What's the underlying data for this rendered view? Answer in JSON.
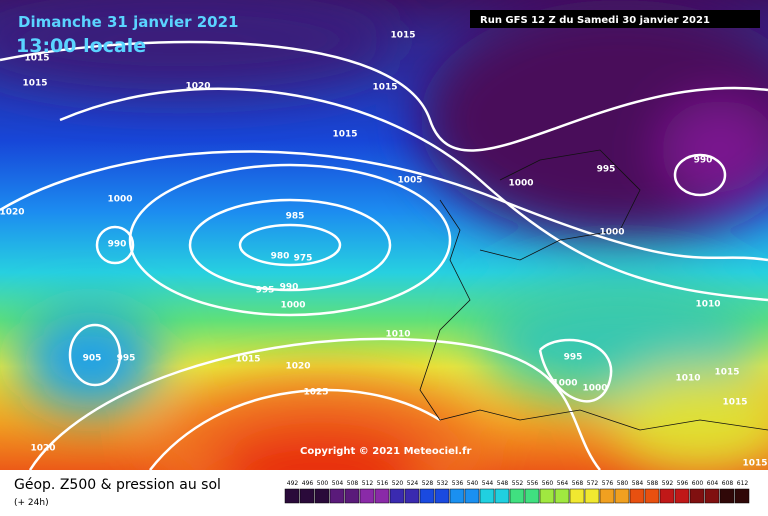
{
  "header": {
    "date": "Dimanche 31 janvier 2021",
    "time": "13:00 locale",
    "run": "Run GFS 12 Z du Samedi 30 janvier 2021"
  },
  "isobar_labels": [
    "1015",
    "1015",
    "1015",
    "1020",
    "1015",
    "1015",
    "1005",
    "1000",
    "995",
    "990",
    "1000",
    "1020",
    "985",
    "990",
    "980",
    "975",
    "995",
    "990",
    "1000",
    "1000",
    "1010",
    "1010",
    "905",
    "995",
    "1015",
    "995",
    "1020",
    "1000",
    "1000",
    "1010",
    "1015",
    "1025",
    "1015",
    "1020",
    "1015"
  ],
  "copyright": "Copyright © 2021 Meteociel.fr",
  "footer": {
    "title": "Géop. Z500 & pression au sol",
    "lead": "(+ 24h)"
  },
  "colorbar": [
    492,
    496,
    500,
    504,
    508,
    512,
    516,
    520,
    524,
    528,
    532,
    536,
    540,
    544,
    548,
    552,
    556,
    560,
    564,
    568,
    572,
    576,
    580,
    584,
    588,
    592,
    596,
    600,
    604,
    608,
    612
  ]
}
